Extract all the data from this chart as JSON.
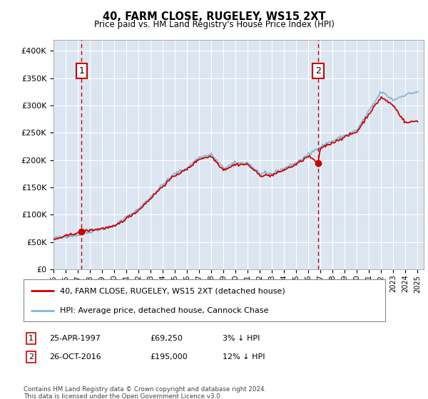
{
  "title": "40, FARM CLOSE, RUGELEY, WS15 2XT",
  "subtitle": "Price paid vs. HM Land Registry's House Price Index (HPI)",
  "ylabel_ticks": [
    "£0",
    "£50K",
    "£100K",
    "£150K",
    "£200K",
    "£250K",
    "£300K",
    "£350K",
    "£400K"
  ],
  "ytick_values": [
    0,
    50000,
    100000,
    150000,
    200000,
    250000,
    300000,
    350000,
    400000
  ],
  "ylim": [
    0,
    420000
  ],
  "xlim_start": 1995.0,
  "xlim_end": 2025.5,
  "plot_bg_color": "#dce6f1",
  "grid_color": "#ffffff",
  "hpi_color": "#8ab4d4",
  "price_color": "#cc0000",
  "sale1_x": 1997.31,
  "sale1_y": 69250,
  "sale1_label": "1",
  "sale1_date": "25-APR-1997",
  "sale1_price": "£69,250",
  "sale1_hpi": "3% ↓ HPI",
  "sale2_x": 2016.81,
  "sale2_y": 195000,
  "sale2_label": "2",
  "sale2_date": "26-OCT-2016",
  "sale2_price": "£195,000",
  "sale2_hpi": "12% ↓ HPI",
  "legend_line1": "40, FARM CLOSE, RUGELEY, WS15 2XT (detached house)",
  "legend_line2": "HPI: Average price, detached house, Cannock Chase",
  "footer": "Contains HM Land Registry data © Crown copyright and database right 2024.\nThis data is licensed under the Open Government Licence v3.0.",
  "xtick_years": [
    1995,
    1996,
    1997,
    1998,
    1999,
    2000,
    2001,
    2002,
    2003,
    2004,
    2005,
    2006,
    2007,
    2008,
    2009,
    2010,
    2011,
    2012,
    2013,
    2014,
    2015,
    2016,
    2017,
    2018,
    2019,
    2020,
    2021,
    2022,
    2023,
    2024,
    2025
  ]
}
